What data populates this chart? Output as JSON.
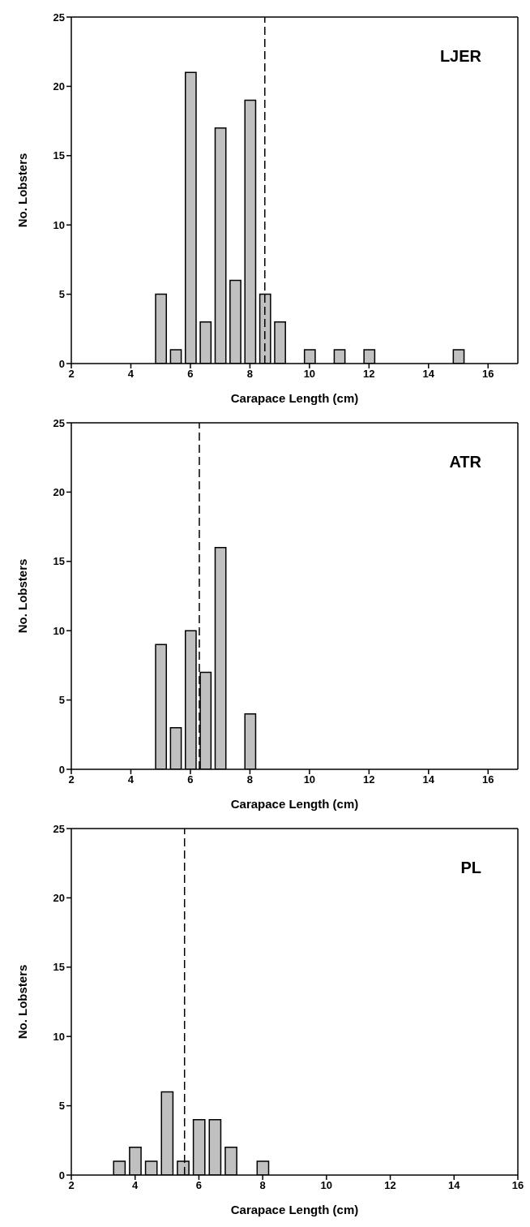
{
  "chart_data": [
    {
      "type": "bar",
      "x": [
        5,
        5.5,
        6,
        6.5,
        7,
        7.5,
        8,
        8.5,
        9,
        10,
        11,
        12,
        15
      ],
      "values": [
        5,
        1,
        21,
        3,
        17,
        6,
        19,
        5,
        3,
        1,
        1,
        1,
        1
      ],
      "color": "#c0c0c0",
      "xlabel": "Carapace Length (cm)",
      "ylabel": "No. Lobsters",
      "xlim": [
        2,
        17
      ],
      "xticks": [
        2,
        4,
        6,
        8,
        10,
        12,
        14,
        16
      ],
      "ylim": [
        0,
        25
      ],
      "yticks": [
        0,
        5,
        10,
        15,
        20,
        25
      ],
      "annotations": [
        "LJER"
      ],
      "ref_lines": [
        {
          "axis": "x",
          "value": 8.5,
          "line_style": "dashed",
          "color": "#000000"
        }
      ]
    },
    {
      "type": "bar",
      "x": [
        5,
        5.5,
        6,
        6.5,
        7,
        8
      ],
      "values": [
        9,
        3,
        10,
        7,
        16,
        4
      ],
      "color": "#c0c0c0",
      "xlabel": "Carapace Length (cm)",
      "ylabel": "No. Lobsters",
      "xlim": [
        2,
        17
      ],
      "xticks": [
        2,
        4,
        6,
        8,
        10,
        12,
        14,
        16
      ],
      "ylim": [
        0,
        25
      ],
      "yticks": [
        0,
        5,
        10,
        15,
        20,
        25
      ],
      "annotations": [
        "ATR"
      ],
      "ref_lines": [
        {
          "axis": "x",
          "value": 6.3,
          "line_style": "dashed",
          "color": "#000000"
        }
      ]
    },
    {
      "type": "bar",
      "x": [
        3.5,
        4,
        4.5,
        5,
        5.5,
        6,
        6.5,
        7,
        8
      ],
      "values": [
        1,
        2,
        1,
        6,
        1,
        4,
        4,
        2,
        1
      ],
      "color": "#c0c0c0",
      "xlabel": "Carapace Length (cm)",
      "ylabel": "No. Lobsters",
      "xlim": [
        2,
        16
      ],
      "xticks": [
        2,
        4,
        6,
        8,
        10,
        12,
        14,
        16
      ],
      "ylim": [
        0,
        25
      ],
      "yticks": [
        0,
        5,
        10,
        15,
        20,
        25
      ],
      "annotations": [
        "PL"
      ],
      "ref_lines": [
        {
          "axis": "x",
          "value": 5.55,
          "line_style": "dashed",
          "color": "#000000"
        }
      ]
    }
  ]
}
